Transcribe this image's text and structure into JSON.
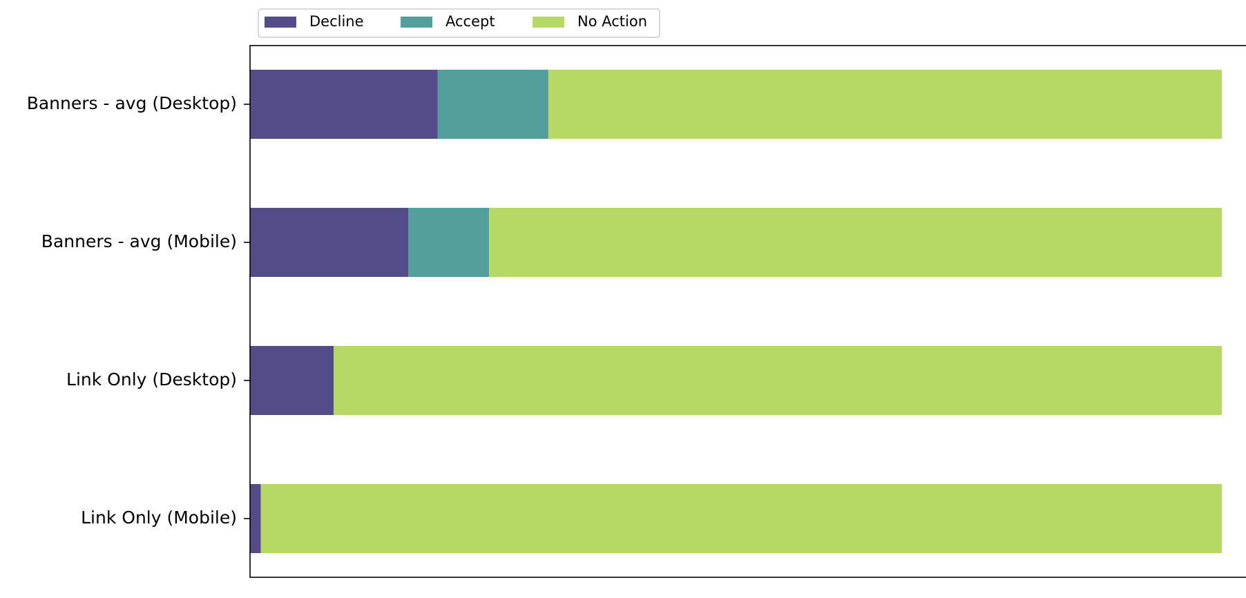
{
  "chart_data": {
    "type": "bar",
    "orientation": "horizontal",
    "stacked": true,
    "title": "",
    "xlabel": "",
    "ylabel": "",
    "xlim": [
      0,
      100
    ],
    "x_axis_visible": false,
    "grid": false,
    "legend_position": "top-left, above plot",
    "categories": [
      "Banners - avg (Desktop)",
      "Banners - avg (Mobile)",
      "Link Only (Desktop)",
      "Link Only (Mobile)"
    ],
    "series": [
      {
        "name": "Decline",
        "color": "#544b8b",
        "values": [
          19.3,
          16.3,
          8.6,
          1.1
        ]
      },
      {
        "name": "Accept",
        "color": "#529f9d",
        "values": [
          11.4,
          8.3,
          0,
          0
        ]
      },
      {
        "name": "No Action",
        "color": "#b5d964",
        "values": [
          69.3,
          75.4,
          91.4,
          98.9
        ]
      }
    ]
  }
}
